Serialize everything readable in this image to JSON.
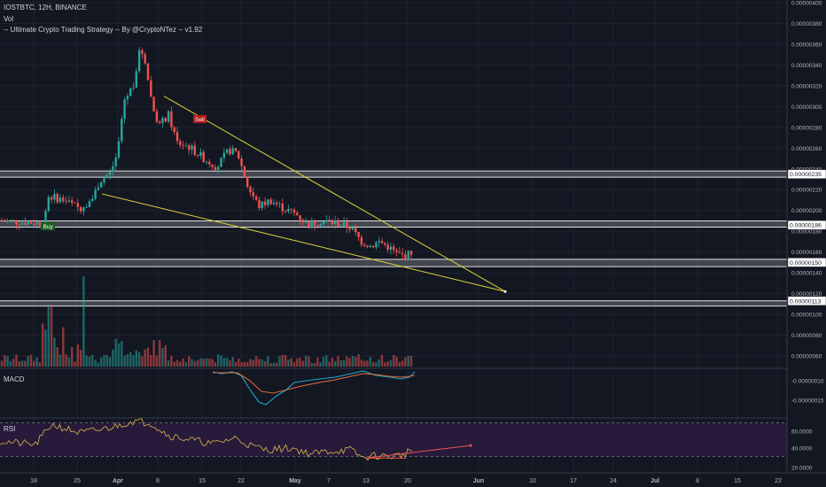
{
  "header": {
    "symbol_line": "IOSTBTC, 12H, BINANCE",
    "vol_label": "Vol",
    "strategy_label": "-- Ultimate Crypto Trading Strategy -- By @CryptoNTez -- v1.92"
  },
  "signals": {
    "buy": "Buy",
    "sell": "Sell"
  },
  "panes": {
    "macd_label": "MACD",
    "rsi_label": "RSI"
  },
  "colors": {
    "up": "#26a69a",
    "down": "#ef5350",
    "trendline": "#e0d43a",
    "macd": "#22a4c9",
    "signal": "#e06a3a",
    "rsi": "#c8a84a",
    "rsi_band": "#2a1b3d",
    "zone": "#6b6e75",
    "bg": "#131722"
  },
  "chart_data": [
    {
      "type": "candlestick",
      "price_axis_ticks": [
        "0.00000400",
        "0.00000380",
        "0.00000360",
        "0.00000340",
        "0.00000320",
        "0.00000300",
        "0.00000280",
        "0.00000260",
        "0.00000240",
        "0.00000220",
        "0.00000200",
        "0.00000180",
        "0.00000160",
        "0.00000140",
        "0.00000120",
        "0.00000100",
        "0.00000080",
        "0.00000060"
      ],
      "highlighted_levels": [
        "0.00000235",
        "0.00000186",
        "0.00000150",
        "0.00000113"
      ],
      "x_axis_ticks": [
        "18",
        "25",
        "Apr",
        "8",
        "15",
        "22",
        "May",
        "7",
        "13",
        "20",
        "Jun",
        "10",
        "17",
        "24",
        "Jul",
        "8",
        "15",
        "22"
      ],
      "last_price": 1.6e-06,
      "trendlines": [
        {
          "name": "upper",
          "from": [
            3.1e-06,
            "Apr 9"
          ],
          "to": [
            1.22e-06,
            "Jun 5"
          ]
        },
        {
          "name": "lower",
          "from": [
            2.16e-06,
            "Mar 30"
          ],
          "to": [
            1.22e-06,
            "Jun 5"
          ]
        }
      ]
    },
    {
      "type": "line",
      "pane": "MACD",
      "y_ticks": [
        "-0.00000010",
        "-0.00000015"
      ]
    },
    {
      "type": "line",
      "pane": "RSI",
      "y_ticks": [
        "60.0000",
        "40.0000",
        "20.0000"
      ],
      "levels": [
        70,
        30
      ]
    }
  ]
}
